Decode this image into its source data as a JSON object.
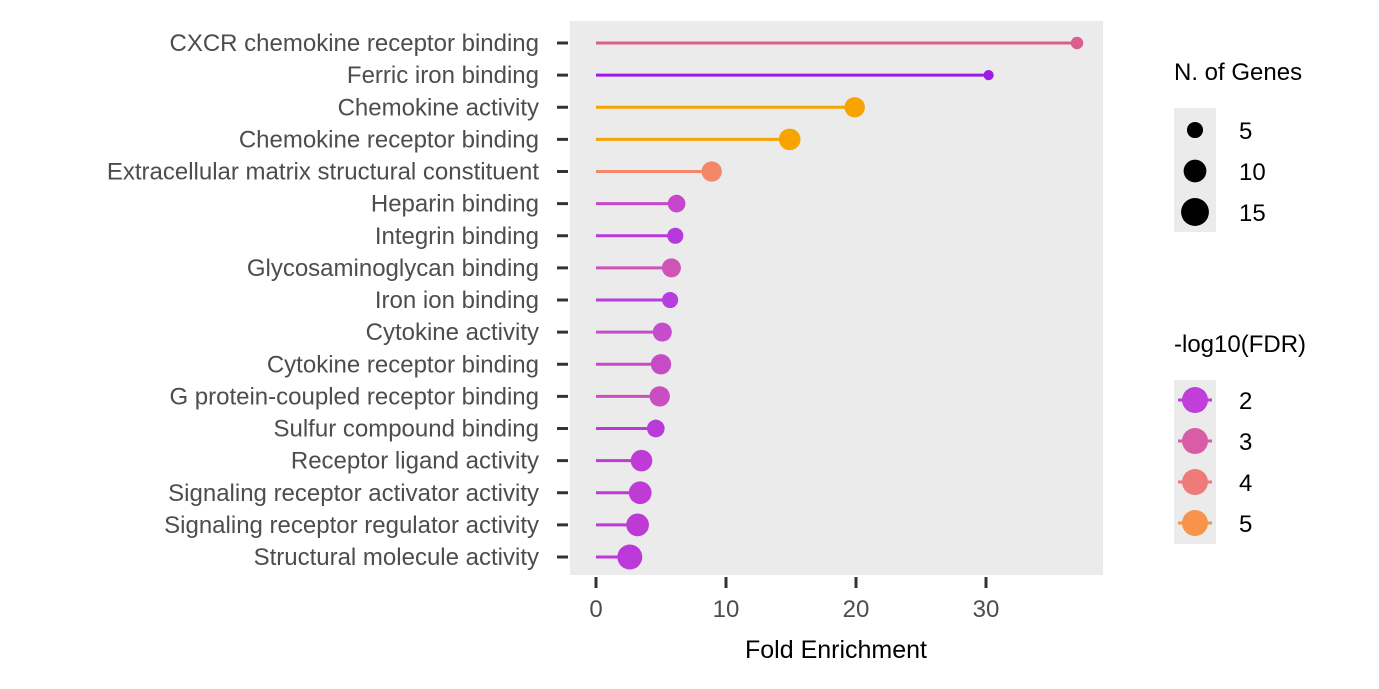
{
  "chart_data": {
    "type": "lollipop",
    "xlabel": "Fold Enrichment",
    "xlim": [
      -2,
      39
    ],
    "xticks": [
      0,
      10,
      20,
      30
    ],
    "grid": false,
    "panel_background": "#EBEBEB",
    "categories": [
      "CXCR chemokine receptor binding",
      "Ferric iron binding",
      "Chemokine activity",
      "Chemokine receptor binding",
      "Extracellular matrix structural constituent",
      "Heparin binding",
      "Integrin binding",
      "Glycosaminoglycan binding",
      "Iron ion binding",
      "Cytokine activity",
      "Cytokine receptor binding",
      "G protein-coupled receptor binding",
      "Sulfur compound binding",
      "Receptor ligand activity",
      "Signaling receptor activator activity",
      "Signaling receptor regulator activity",
      "Structural molecule activity"
    ],
    "fold_enrichment": [
      37.0,
      30.2,
      19.9,
      14.9,
      8.9,
      6.2,
      6.1,
      5.8,
      5.7,
      5.1,
      5.0,
      4.9,
      4.6,
      3.5,
      3.4,
      3.2,
      2.6
    ],
    "n_genes": [
      3,
      2,
      8,
      9,
      8,
      6,
      5,
      7,
      5,
      7,
      8,
      8,
      6,
      9,
      10,
      10,
      12
    ],
    "neg_log10_fdr": [
      3.0,
      1.5,
      5.0,
      5.0,
      4.2,
      2.6,
      1.9,
      2.9,
      2.0,
      2.6,
      2.8,
      2.8,
      2.0,
      2.2,
      2.0,
      2.0,
      2.0
    ],
    "colors": [
      "#D95F8C",
      "#9F1AE6",
      "#F7A400",
      "#F7A400",
      "#F3876A",
      "#C548CC",
      "#B639DD",
      "#CF54B6",
      "#B73DDE",
      "#C54CCB",
      "#C74AC6",
      "#CA4EC1",
      "#B93AD8",
      "#BF3BD6",
      "#BF3BD6",
      "#BE3AD7",
      "#BD38D8"
    ],
    "size_legend": {
      "title": "N. of Genes",
      "labels": [
        "5",
        "10",
        "15"
      ],
      "values": [
        5,
        10,
        15
      ]
    },
    "color_legend": {
      "title": "-log10(FDR)",
      "labels": [
        "2",
        "3",
        "4",
        "5"
      ],
      "colors": [
        "#C03FDA",
        "#D85CA6",
        "#EE7A7A",
        "#F7934A"
      ]
    }
  }
}
